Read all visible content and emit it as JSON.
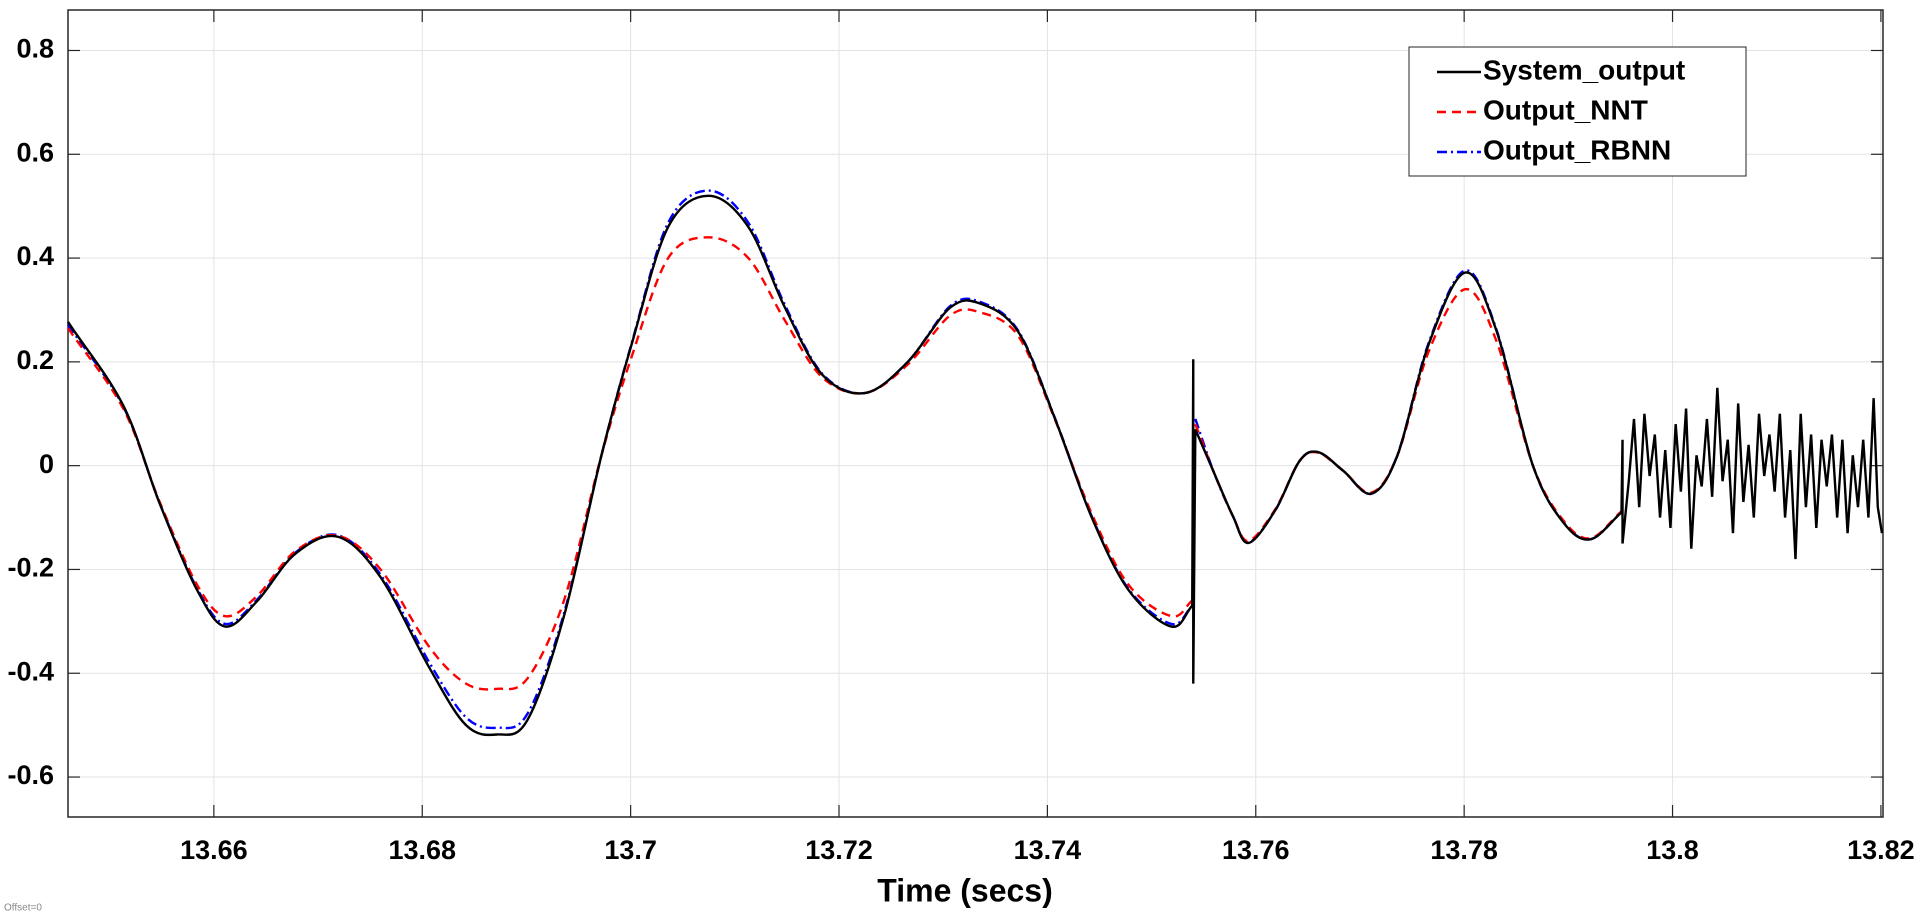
{
  "chart_data": {
    "type": "line",
    "xlabel": "Time (secs)",
    "annotation": "Offset=0",
    "xlim": [
      13.646,
      13.8202
    ],
    "ylim": [
      -0.677,
      0.878
    ],
    "xticks": [
      13.66,
      13.68,
      13.7,
      13.72,
      13.74,
      13.76,
      13.78,
      13.8,
      13.82
    ],
    "yticks": [
      -0.6,
      -0.4,
      -0.2,
      0,
      0.2,
      0.4,
      0.6,
      0.8
    ],
    "grid": true,
    "legend": "upper right",
    "x": [
      13.646,
      13.6513,
      13.6548,
      13.6584,
      13.6611,
      13.6642,
      13.6678,
      13.6719,
      13.676,
      13.6807,
      13.6842,
      13.6872,
      13.6901,
      13.6936,
      13.6972,
      13.7001,
      13.7036,
      13.7075,
      13.7113,
      13.7148,
      13.7184,
      13.7225,
      13.7266,
      13.7307,
      13.7336,
      13.7372,
      13.7407,
      13.7442,
      13.7478,
      13.7519,
      13.7539,
      13.754,
      13.754,
      13.7542,
      13.756,
      13.7578,
      13.7593,
      13.7619,
      13.7642,
      13.766,
      13.7684,
      13.7711,
      13.7736,
      13.7766,
      13.7801,
      13.7831,
      13.7866,
      13.7895,
      13.7921,
      13.7951,
      13.7952,
      13.7952,
      13.7958,
      13.7963,
      13.7968,
      13.7973,
      13.7978,
      13.7983,
      13.7988,
      13.7993,
      13.7998,
      13.8003,
      13.8008,
      13.8013,
      13.8018,
      13.8023,
      13.8028,
      13.8033,
      13.8038,
      13.8043,
      13.8048,
      13.8053,
      13.8058,
      13.8063,
      13.8068,
      13.8073,
      13.8078,
      13.8083,
      13.8088,
      13.8093,
      13.8098,
      13.8103,
      13.8108,
      13.8113,
      13.8118,
      13.8123,
      13.8128,
      13.8133,
      13.8138,
      13.8143,
      13.8148,
      13.8153,
      13.8158,
      13.8163,
      13.8168,
      13.8173,
      13.8178,
      13.8183,
      13.8188,
      13.8193,
      13.8197,
      13.8201
    ],
    "series": [
      {
        "name": "System_output",
        "color": "#000000",
        "dash": "solid",
        "values": [
          0.277,
          0.116,
          -0.073,
          -0.24,
          -0.31,
          -0.26,
          -0.17,
          -0.137,
          -0.215,
          -0.39,
          -0.5,
          -0.518,
          -0.49,
          -0.29,
          0.02,
          0.234,
          0.46,
          0.52,
          0.46,
          0.305,
          0.175,
          0.14,
          0.2,
          0.305,
          0.312,
          0.258,
          0.092,
          -0.097,
          -0.24,
          -0.31,
          -0.27,
          0.205,
          -0.42,
          0.07,
          -0.014,
          -0.097,
          -0.149,
          -0.085,
          0.009,
          0.026,
          -0.01,
          -0.054,
          0.02,
          0.234,
          0.372,
          0.26,
          0.0,
          -0.109,
          -0.142,
          -0.09,
          0.05,
          -0.15,
          -0.03,
          0.09,
          -0.08,
          0.1,
          -0.02,
          0.06,
          -0.1,
          0.03,
          -0.12,
          0.08,
          -0.05,
          0.11,
          -0.16,
          0.02,
          -0.04,
          0.09,
          -0.06,
          0.15,
          -0.03,
          0.05,
          -0.13,
          0.12,
          -0.07,
          0.04,
          -0.1,
          0.1,
          -0.02,
          0.06,
          -0.05,
          0.1,
          -0.1,
          0.03,
          -0.18,
          0.1,
          -0.08,
          0.06,
          -0.12,
          0.05,
          -0.04,
          0.06,
          -0.1,
          0.05,
          -0.13,
          0.02,
          -0.08,
          0.05,
          -0.1,
          0.13,
          -0.08,
          -0.13
        ]
      },
      {
        "name": "Output_NNT",
        "color": "#ff0000",
        "dash": "dashed",
        "values": [
          0.265,
          0.11,
          -0.07,
          -0.23,
          -0.29,
          -0.25,
          -0.165,
          -0.135,
          -0.2,
          -0.35,
          -0.42,
          -0.43,
          -0.41,
          -0.26,
          0.02,
          0.21,
          0.4,
          0.44,
          0.4,
          0.28,
          0.17,
          0.14,
          0.195,
          0.29,
          0.295,
          0.25,
          0.09,
          -0.09,
          -0.23,
          -0.29,
          -0.26,
          null,
          null,
          0.08,
          -0.014,
          -0.097,
          -0.145,
          -0.083,
          0.009,
          0.025,
          -0.01,
          -0.052,
          0.02,
          0.22,
          0.34,
          0.24,
          0.0,
          -0.105,
          -0.14,
          -0.088,
          null,
          null,
          null,
          null,
          null,
          null,
          null,
          null,
          null,
          null,
          null,
          null,
          null,
          null,
          null,
          null,
          null,
          null,
          null,
          null,
          null,
          null,
          null,
          null,
          null,
          null,
          null,
          null,
          null,
          null,
          null,
          null,
          null,
          null,
          null,
          null,
          null,
          null,
          null,
          null,
          null,
          null,
          null,
          null,
          null,
          null,
          null,
          null,
          null,
          null,
          null,
          null
        ]
      },
      {
        "name": "Output_RBNN",
        "color": "#0000ff",
        "dash": "dashdot",
        "values": [
          0.272,
          0.114,
          -0.072,
          -0.237,
          -0.305,
          -0.257,
          -0.168,
          -0.134,
          -0.21,
          -0.38,
          -0.485,
          -0.505,
          -0.478,
          -0.285,
          0.02,
          0.236,
          0.468,
          0.53,
          0.468,
          0.31,
          0.177,
          0.14,
          0.2,
          0.308,
          0.315,
          0.26,
          0.093,
          -0.095,
          -0.238,
          -0.305,
          -0.27,
          null,
          null,
          0.09,
          -0.014,
          -0.097,
          -0.148,
          -0.085,
          0.009,
          0.026,
          -0.01,
          -0.054,
          0.021,
          0.237,
          0.376,
          0.262,
          0.0,
          -0.108,
          -0.142,
          -0.09,
          null,
          null,
          null,
          null,
          null,
          null,
          null,
          null,
          null,
          null,
          null,
          null,
          null,
          null,
          null,
          null,
          null,
          null,
          null,
          null,
          null,
          null,
          null,
          null,
          null,
          null,
          null,
          null,
          null,
          null,
          null,
          null,
          null,
          null,
          null,
          null,
          null,
          null,
          null,
          null,
          null,
          null,
          null,
          null,
          null,
          null,
          null,
          null,
          null,
          null,
          null,
          null
        ]
      }
    ]
  }
}
